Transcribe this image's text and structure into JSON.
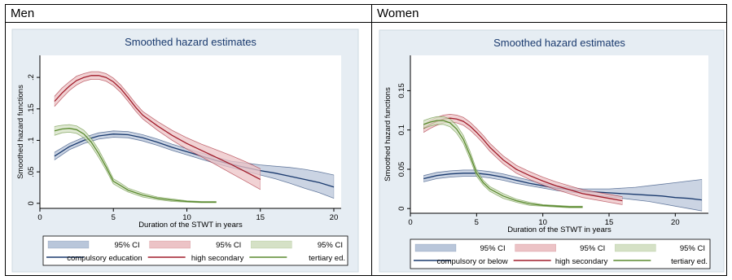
{
  "panels": [
    {
      "header": "Men"
    },
    {
      "header": "Women"
    }
  ],
  "colors": {
    "compulsory": "#1a3a6e",
    "compulsory_ci": "#b9c6da",
    "high": "#a11d2b",
    "high_ci": "#ecc3c6",
    "tertiary": "#5a8a2e",
    "tertiary_ci": "#d5e1c6",
    "plot_bg": "#ffffff",
    "outer_bg": "#e6edf3",
    "title": "#1a3a6e"
  },
  "chart_data": [
    {
      "type": "line",
      "title": "Smoothed hazard estimates",
      "xlabel": "Duration of the STWT in years",
      "ylabel": "Smoothed  hazard functions",
      "xlim": [
        0,
        20.5
      ],
      "ylim": [
        -0.008,
        0.235
      ],
      "xticks": [
        0,
        5,
        10,
        15,
        20
      ],
      "yticks": [
        0,
        0.05,
        0.1,
        0.15,
        0.2
      ],
      "ytick_labels": [
        "0",
        ".05",
        ".1",
        ".15",
        ".2"
      ],
      "legend": {
        "position": "bottom",
        "ci_label": "95% CI",
        "names": [
          "compulsory education",
          "high secondary",
          "tertiary ed."
        ]
      },
      "series": [
        {
          "name": "compulsory education",
          "key": "compulsory",
          "x": [
            1,
            2,
            3,
            4,
            5,
            6,
            7,
            8,
            9,
            10,
            11,
            12,
            13,
            14,
            15,
            16,
            17,
            18,
            19,
            20
          ],
          "y": [
            0.075,
            0.09,
            0.1,
            0.107,
            0.11,
            0.109,
            0.104,
            0.097,
            0.089,
            0.082,
            0.075,
            0.068,
            0.062,
            0.057,
            0.052,
            0.048,
            0.043,
            0.038,
            0.033,
            0.026
          ],
          "lo": [
            0.069,
            0.085,
            0.095,
            0.102,
            0.105,
            0.104,
            0.099,
            0.092,
            0.084,
            0.077,
            0.07,
            0.063,
            0.057,
            0.051,
            0.045,
            0.039,
            0.032,
            0.024,
            0.017,
            0.008
          ],
          "hi": [
            0.081,
            0.095,
            0.105,
            0.112,
            0.115,
            0.114,
            0.109,
            0.102,
            0.094,
            0.087,
            0.08,
            0.073,
            0.067,
            0.064,
            0.061,
            0.059,
            0.057,
            0.054,
            0.05,
            0.045
          ]
        },
        {
          "name": "high secondary",
          "key": "high",
          "x": [
            1,
            1.5,
            2,
            2.5,
            3,
            3.5,
            4,
            4.5,
            5,
            5.5,
            6,
            6.5,
            7,
            8,
            9,
            10,
            11,
            12,
            13,
            14,
            15
          ],
          "y": [
            0.162,
            0.175,
            0.186,
            0.195,
            0.2,
            0.203,
            0.203,
            0.2,
            0.193,
            0.182,
            0.168,
            0.153,
            0.14,
            0.123,
            0.108,
            0.095,
            0.084,
            0.073,
            0.062,
            0.05,
            0.038
          ],
          "lo": [
            0.154,
            0.167,
            0.179,
            0.188,
            0.194,
            0.197,
            0.197,
            0.194,
            0.187,
            0.176,
            0.162,
            0.147,
            0.134,
            0.116,
            0.1,
            0.086,
            0.074,
            0.061,
            0.048,
            0.035,
            0.022
          ],
          "hi": [
            0.17,
            0.183,
            0.193,
            0.202,
            0.206,
            0.209,
            0.209,
            0.206,
            0.199,
            0.188,
            0.174,
            0.159,
            0.146,
            0.13,
            0.116,
            0.104,
            0.094,
            0.085,
            0.076,
            0.066,
            0.055
          ]
        },
        {
          "name": "tertiary ed.",
          "key": "tertiary",
          "x": [
            1,
            1.5,
            2,
            2.5,
            3,
            3.5,
            4,
            4.5,
            5,
            5.5,
            6,
            7,
            8,
            9,
            10,
            11,
            12
          ],
          "y": [
            0.115,
            0.118,
            0.119,
            0.117,
            0.11,
            0.097,
            0.079,
            0.058,
            0.035,
            0.028,
            0.021,
            0.013,
            0.008,
            0.005,
            0.003,
            0.002,
            0.002
          ],
          "lo": [
            0.108,
            0.112,
            0.113,
            0.111,
            0.104,
            0.091,
            0.073,
            0.053,
            0.031,
            0.024,
            0.018,
            0.01,
            0.006,
            0.003,
            0.002,
            0.001,
            0.001
          ],
          "hi": [
            0.122,
            0.124,
            0.125,
            0.123,
            0.116,
            0.103,
            0.085,
            0.063,
            0.039,
            0.032,
            0.024,
            0.016,
            0.01,
            0.007,
            0.004,
            0.003,
            0.003
          ]
        }
      ]
    },
    {
      "type": "line",
      "title": "Smoothed hazard estimates",
      "xlabel": "Duration of the STWT in years",
      "ylabel": "Smoothed  hazard functions",
      "xlim": [
        0,
        22.5
      ],
      "ylim": [
        -0.006,
        0.195
      ],
      "xticks": [
        0,
        5,
        10,
        15,
        20
      ],
      "yticks": [
        0,
        0.05,
        0.1,
        0.15
      ],
      "ytick_labels": [
        "0",
        "0.05",
        "0.1",
        "0.15"
      ],
      "legend": {
        "position": "bottom",
        "ci_label": "95% CI",
        "names": [
          "compulsory or below",
          "high secondary",
          "tertiary ed."
        ]
      },
      "series": [
        {
          "name": "compulsory or below",
          "key": "compulsory",
          "x": [
            1,
            2,
            3,
            4,
            5,
            6,
            7,
            8,
            9,
            10,
            11,
            12,
            13,
            14,
            15,
            16,
            17,
            18,
            19,
            20,
            21,
            22
          ],
          "y": [
            0.038,
            0.042,
            0.044,
            0.045,
            0.045,
            0.043,
            0.04,
            0.036,
            0.032,
            0.029,
            0.026,
            0.024,
            0.022,
            0.021,
            0.02,
            0.019,
            0.018,
            0.017,
            0.016,
            0.014,
            0.013,
            0.011
          ],
          "lo": [
            0.034,
            0.038,
            0.04,
            0.041,
            0.041,
            0.039,
            0.036,
            0.032,
            0.029,
            0.026,
            0.023,
            0.021,
            0.019,
            0.017,
            0.015,
            0.013,
            0.011,
            0.009,
            0.006,
            0.003,
            0.0,
            -0.003
          ],
          "hi": [
            0.042,
            0.046,
            0.048,
            0.049,
            0.049,
            0.047,
            0.044,
            0.04,
            0.036,
            0.032,
            0.029,
            0.027,
            0.025,
            0.025,
            0.025,
            0.026,
            0.027,
            0.029,
            0.031,
            0.033,
            0.035,
            0.037
          ]
        },
        {
          "name": "high secondary",
          "key": "high",
          "x": [
            1,
            1.5,
            2,
            2.5,
            3,
            3.5,
            4,
            4.5,
            5,
            5.5,
            6,
            7,
            8,
            9,
            10,
            11,
            12,
            13,
            14,
            15,
            16
          ],
          "y": [
            0.102,
            0.107,
            0.111,
            0.114,
            0.115,
            0.114,
            0.111,
            0.105,
            0.097,
            0.088,
            0.078,
            0.062,
            0.05,
            0.042,
            0.035,
            0.029,
            0.024,
            0.019,
            0.016,
            0.013,
            0.01
          ],
          "lo": [
            0.097,
            0.102,
            0.106,
            0.109,
            0.11,
            0.109,
            0.106,
            0.1,
            0.092,
            0.083,
            0.073,
            0.057,
            0.045,
            0.037,
            0.03,
            0.024,
            0.019,
            0.014,
            0.011,
            0.008,
            0.005
          ],
          "hi": [
            0.107,
            0.112,
            0.116,
            0.119,
            0.12,
            0.119,
            0.116,
            0.11,
            0.102,
            0.093,
            0.083,
            0.067,
            0.055,
            0.047,
            0.04,
            0.034,
            0.029,
            0.024,
            0.021,
            0.018,
            0.015
          ]
        },
        {
          "name": "tertiary ed.",
          "key": "tertiary",
          "x": [
            1,
            1.5,
            2,
            2.5,
            3,
            3.5,
            4,
            4.5,
            5,
            5.5,
            6,
            7,
            8,
            9,
            10,
            11,
            12,
            13
          ],
          "y": [
            0.107,
            0.11,
            0.112,
            0.112,
            0.109,
            0.101,
            0.088,
            0.068,
            0.045,
            0.033,
            0.025,
            0.016,
            0.01,
            0.006,
            0.004,
            0.003,
            0.002,
            0.002
          ],
          "lo": [
            0.102,
            0.105,
            0.107,
            0.107,
            0.104,
            0.096,
            0.083,
            0.063,
            0.041,
            0.03,
            0.022,
            0.013,
            0.008,
            0.004,
            0.003,
            0.002,
            0.001,
            0.001
          ],
          "hi": [
            0.112,
            0.115,
            0.117,
            0.117,
            0.114,
            0.106,
            0.093,
            0.073,
            0.049,
            0.036,
            0.028,
            0.019,
            0.012,
            0.008,
            0.005,
            0.004,
            0.003,
            0.003
          ]
        }
      ]
    }
  ]
}
